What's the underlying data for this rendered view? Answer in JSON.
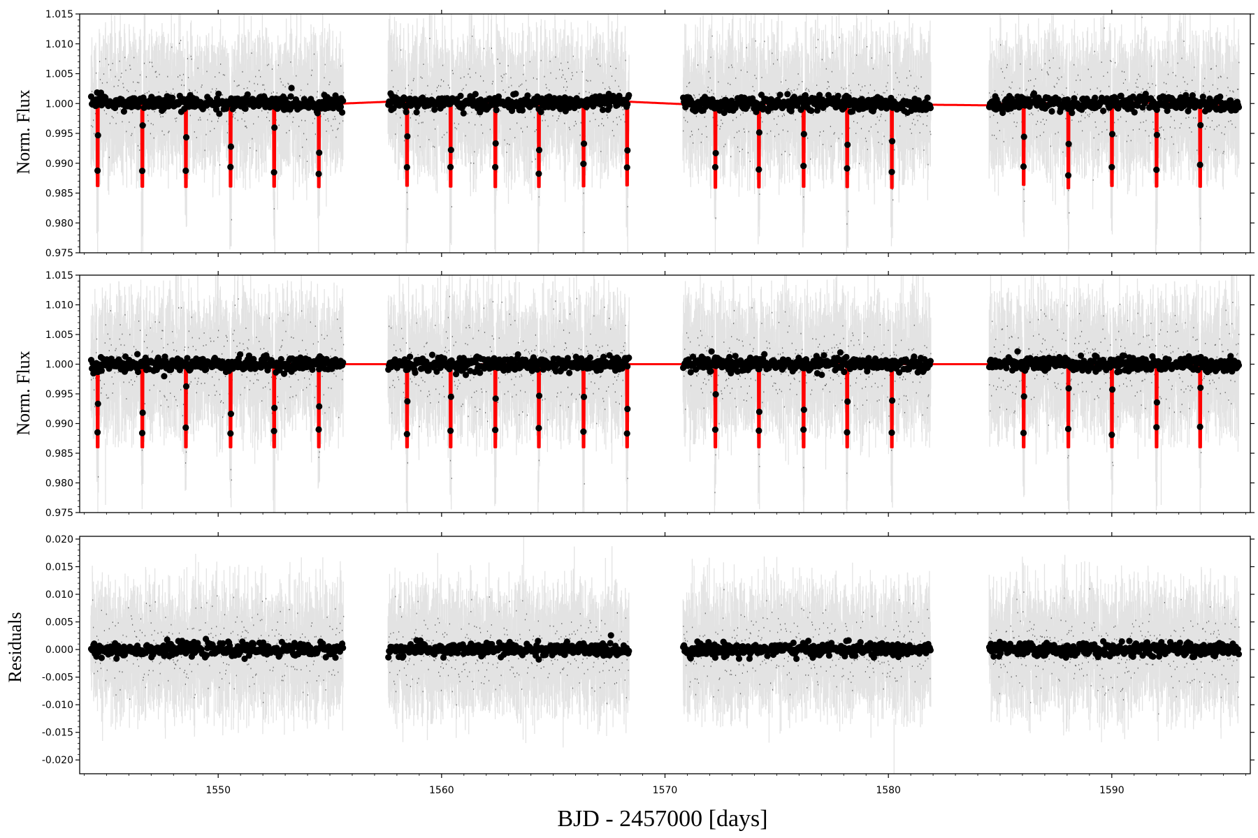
{
  "chart_data": [
    {
      "type": "scatter",
      "title": "",
      "xlabel": "",
      "ylabel": "Norm. Flux",
      "xlim": [
        1543.8,
        1596.2
      ],
      "ylim": [
        0.975,
        1.015
      ],
      "yticks": [
        "0.975",
        "0.980",
        "0.985",
        "0.990",
        "0.995",
        "1.000",
        "1.005",
        "1.010",
        "1.015"
      ],
      "show_xtick_labels": false,
      "series": [
        {
          "role": "raw data",
          "color": "#808080"
        },
        {
          "role": "binned data",
          "color": "#000000"
        },
        {
          "role": "model",
          "color": "#ff0000",
          "includes_trend": true
        }
      ],
      "transit_depth": 0.014,
      "transit_times": [
        1544.6,
        1546.6,
        1548.55,
        1550.55,
        1552.5,
        1554.5,
        1558.45,
        1560.4,
        1562.4,
        1564.35,
        1566.35,
        1568.3,
        1572.25,
        1574.2,
        1576.2,
        1578.15,
        1580.15,
        1586.05,
        1588.05,
        1590.0,
        1592.0,
        1593.95
      ],
      "trend": {
        "x": [
          1544.3,
          1546,
          1548,
          1550,
          1552,
          1554,
          1555.6,
          1557.6,
          1560,
          1562,
          1564,
          1566,
          1568.4,
          1570.8,
          1573,
          1575,
          1577,
          1579.3,
          1581.9,
          1584.5,
          1586,
          1588,
          1589,
          1590,
          1592,
          1593.2,
          1594.5,
          1595.7
        ],
        "y": [
          1.0002,
          1.0001,
          1.0,
          1.0001,
          1.0001,
          1.0,
          1.0,
          1.0003,
          1.0001,
          1.0,
          1.0,
          1.0001,
          1.0003,
          0.9999,
          0.9999,
          1.0,
          1.0001,
          0.9999,
          0.9998,
          0.9997,
          1.0004,
          0.9998,
          1.0,
          1.0002,
          1.0001,
          1.0003,
          0.9999,
          0.9998
        ]
      }
    },
    {
      "type": "scatter",
      "title": "",
      "xlabel": "",
      "ylabel": "Norm. Flux",
      "xlim": [
        1543.8,
        1596.2
      ],
      "ylim": [
        0.975,
        1.015
      ],
      "yticks": [
        "0.975",
        "0.980",
        "0.985",
        "0.990",
        "0.995",
        "1.000",
        "1.005",
        "1.010",
        "1.015"
      ],
      "show_xtick_labels": false,
      "series": [
        {
          "role": "raw data (detrended)",
          "color": "#808080"
        },
        {
          "role": "binned data (detrended)",
          "color": "#000000"
        },
        {
          "role": "transit model",
          "color": "#ff0000",
          "includes_trend": false
        }
      ],
      "transit_depth": 0.014,
      "transit_times": [
        1544.6,
        1546.6,
        1548.55,
        1550.55,
        1552.5,
        1554.5,
        1558.45,
        1560.4,
        1562.4,
        1564.35,
        1566.35,
        1568.3,
        1572.25,
        1574.2,
        1576.2,
        1578.15,
        1580.15,
        1586.05,
        1588.05,
        1590.0,
        1592.0,
        1593.95
      ],
      "baseline": 1.0
    },
    {
      "type": "scatter",
      "title": "",
      "xlabel": "BJD - 2457000 [days]",
      "ylabel": "Residuals",
      "xlim": [
        1543.8,
        1596.2
      ],
      "ylim": [
        -0.0225,
        0.0205
      ],
      "yticks": [
        "-0.020",
        "-0.015",
        "-0.010",
        "-0.005",
        "0.000",
        "0.005",
        "0.010",
        "0.015",
        "0.020"
      ],
      "xticks": [
        "1550",
        "1560",
        "1570",
        "1580",
        "1590"
      ],
      "show_xtick_labels": true,
      "series": [
        {
          "role": "raw residuals",
          "color": "#808080"
        },
        {
          "role": "binned residuals",
          "color": "#000000"
        }
      ],
      "baseline": 0.0
    }
  ],
  "segments": [
    [
      1544.3,
      1555.6
    ],
    [
      1557.6,
      1568.4
    ],
    [
      1570.8,
      1581.9
    ],
    [
      1584.5,
      1595.7
    ]
  ],
  "noise_sigma": 0.0042
}
